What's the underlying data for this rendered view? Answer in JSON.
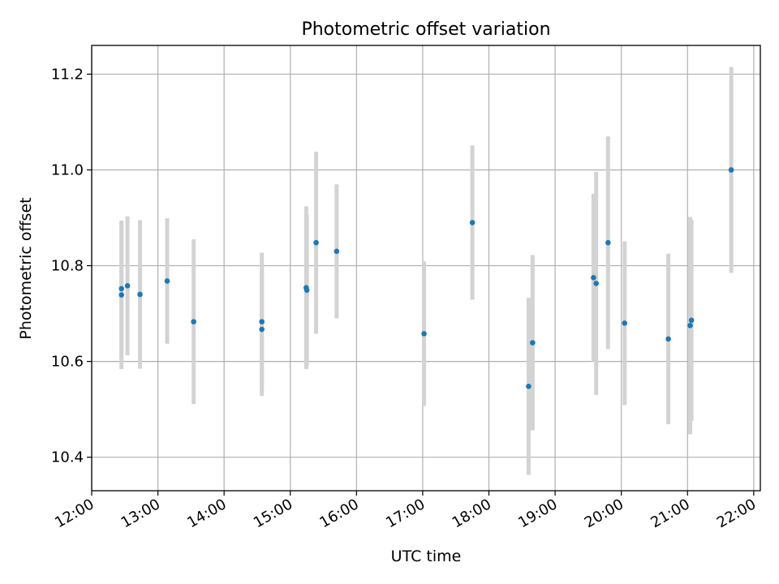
{
  "chart_data": {
    "type": "scatter",
    "title": "Photometric offset variation",
    "xlabel": "UTC time",
    "ylabel": "Photometric offset",
    "x_unit": "hours (UTC)",
    "xlim": [
      12.0,
      22.1
    ],
    "ylim": [
      10.33,
      11.26
    ],
    "x_ticks": [
      12,
      13,
      14,
      15,
      16,
      17,
      18,
      19,
      20,
      21,
      22
    ],
    "x_tick_labels": [
      "12:00",
      "13:00",
      "14:00",
      "15:00",
      "16:00",
      "17:00",
      "18:00",
      "19:00",
      "20:00",
      "21:00",
      "22:00"
    ],
    "y_ticks": [
      10.4,
      10.6,
      10.8,
      11.0,
      11.2
    ],
    "y_tick_labels": [
      "10.4",
      "10.6",
      "10.8",
      "11.0",
      "11.2"
    ],
    "grid": true,
    "colors": {
      "point": "#1f77b4",
      "errorbar": "#d3d3d3",
      "grid": "#b0b0b0",
      "axes": "#000000"
    },
    "series": [
      {
        "points": [
          {
            "x": 12.45,
            "y": 10.739,
            "err": 0.155
          },
          {
            "x": 12.45,
            "y": 10.752,
            "err": 0.14
          },
          {
            "x": 12.54,
            "y": 10.758,
            "err": 0.145
          },
          {
            "x": 12.73,
            "y": 10.74,
            "err": 0.155
          },
          {
            "x": 13.14,
            "y": 10.768,
            "err": 0.131
          },
          {
            "x": 13.54,
            "y": 10.683,
            "err": 0.172
          },
          {
            "x": 14.57,
            "y": 10.683,
            "err": 0.144
          },
          {
            "x": 14.57,
            "y": 10.667,
            "err": 0.139
          },
          {
            "x": 15.24,
            "y": 10.754,
            "err": 0.17
          },
          {
            "x": 15.25,
            "y": 10.749,
            "err": 0.158
          },
          {
            "x": 15.39,
            "y": 10.848,
            "err": 0.19
          },
          {
            "x": 15.7,
            "y": 10.83,
            "err": 0.14
          },
          {
            "x": 17.02,
            "y": 10.658,
            "err": 0.151
          },
          {
            "x": 17.75,
            "y": 10.89,
            "err": 0.161
          },
          {
            "x": 18.6,
            "y": 10.548,
            "err": 0.185
          },
          {
            "x": 18.66,
            "y": 10.639,
            "err": 0.183
          },
          {
            "x": 19.58,
            "y": 10.775,
            "err": 0.175
          },
          {
            "x": 19.62,
            "y": 10.763,
            "err": 0.233
          },
          {
            "x": 19.8,
            "y": 10.848,
            "err": 0.222
          },
          {
            "x": 20.05,
            "y": 10.68,
            "err": 0.171
          },
          {
            "x": 20.71,
            "y": 10.647,
            "err": 0.178
          },
          {
            "x": 21.04,
            "y": 10.675,
            "err": 0.227
          },
          {
            "x": 21.06,
            "y": 10.686,
            "err": 0.21
          },
          {
            "x": 21.66,
            "y": 11.0,
            "err": 0.215
          }
        ]
      }
    ]
  }
}
